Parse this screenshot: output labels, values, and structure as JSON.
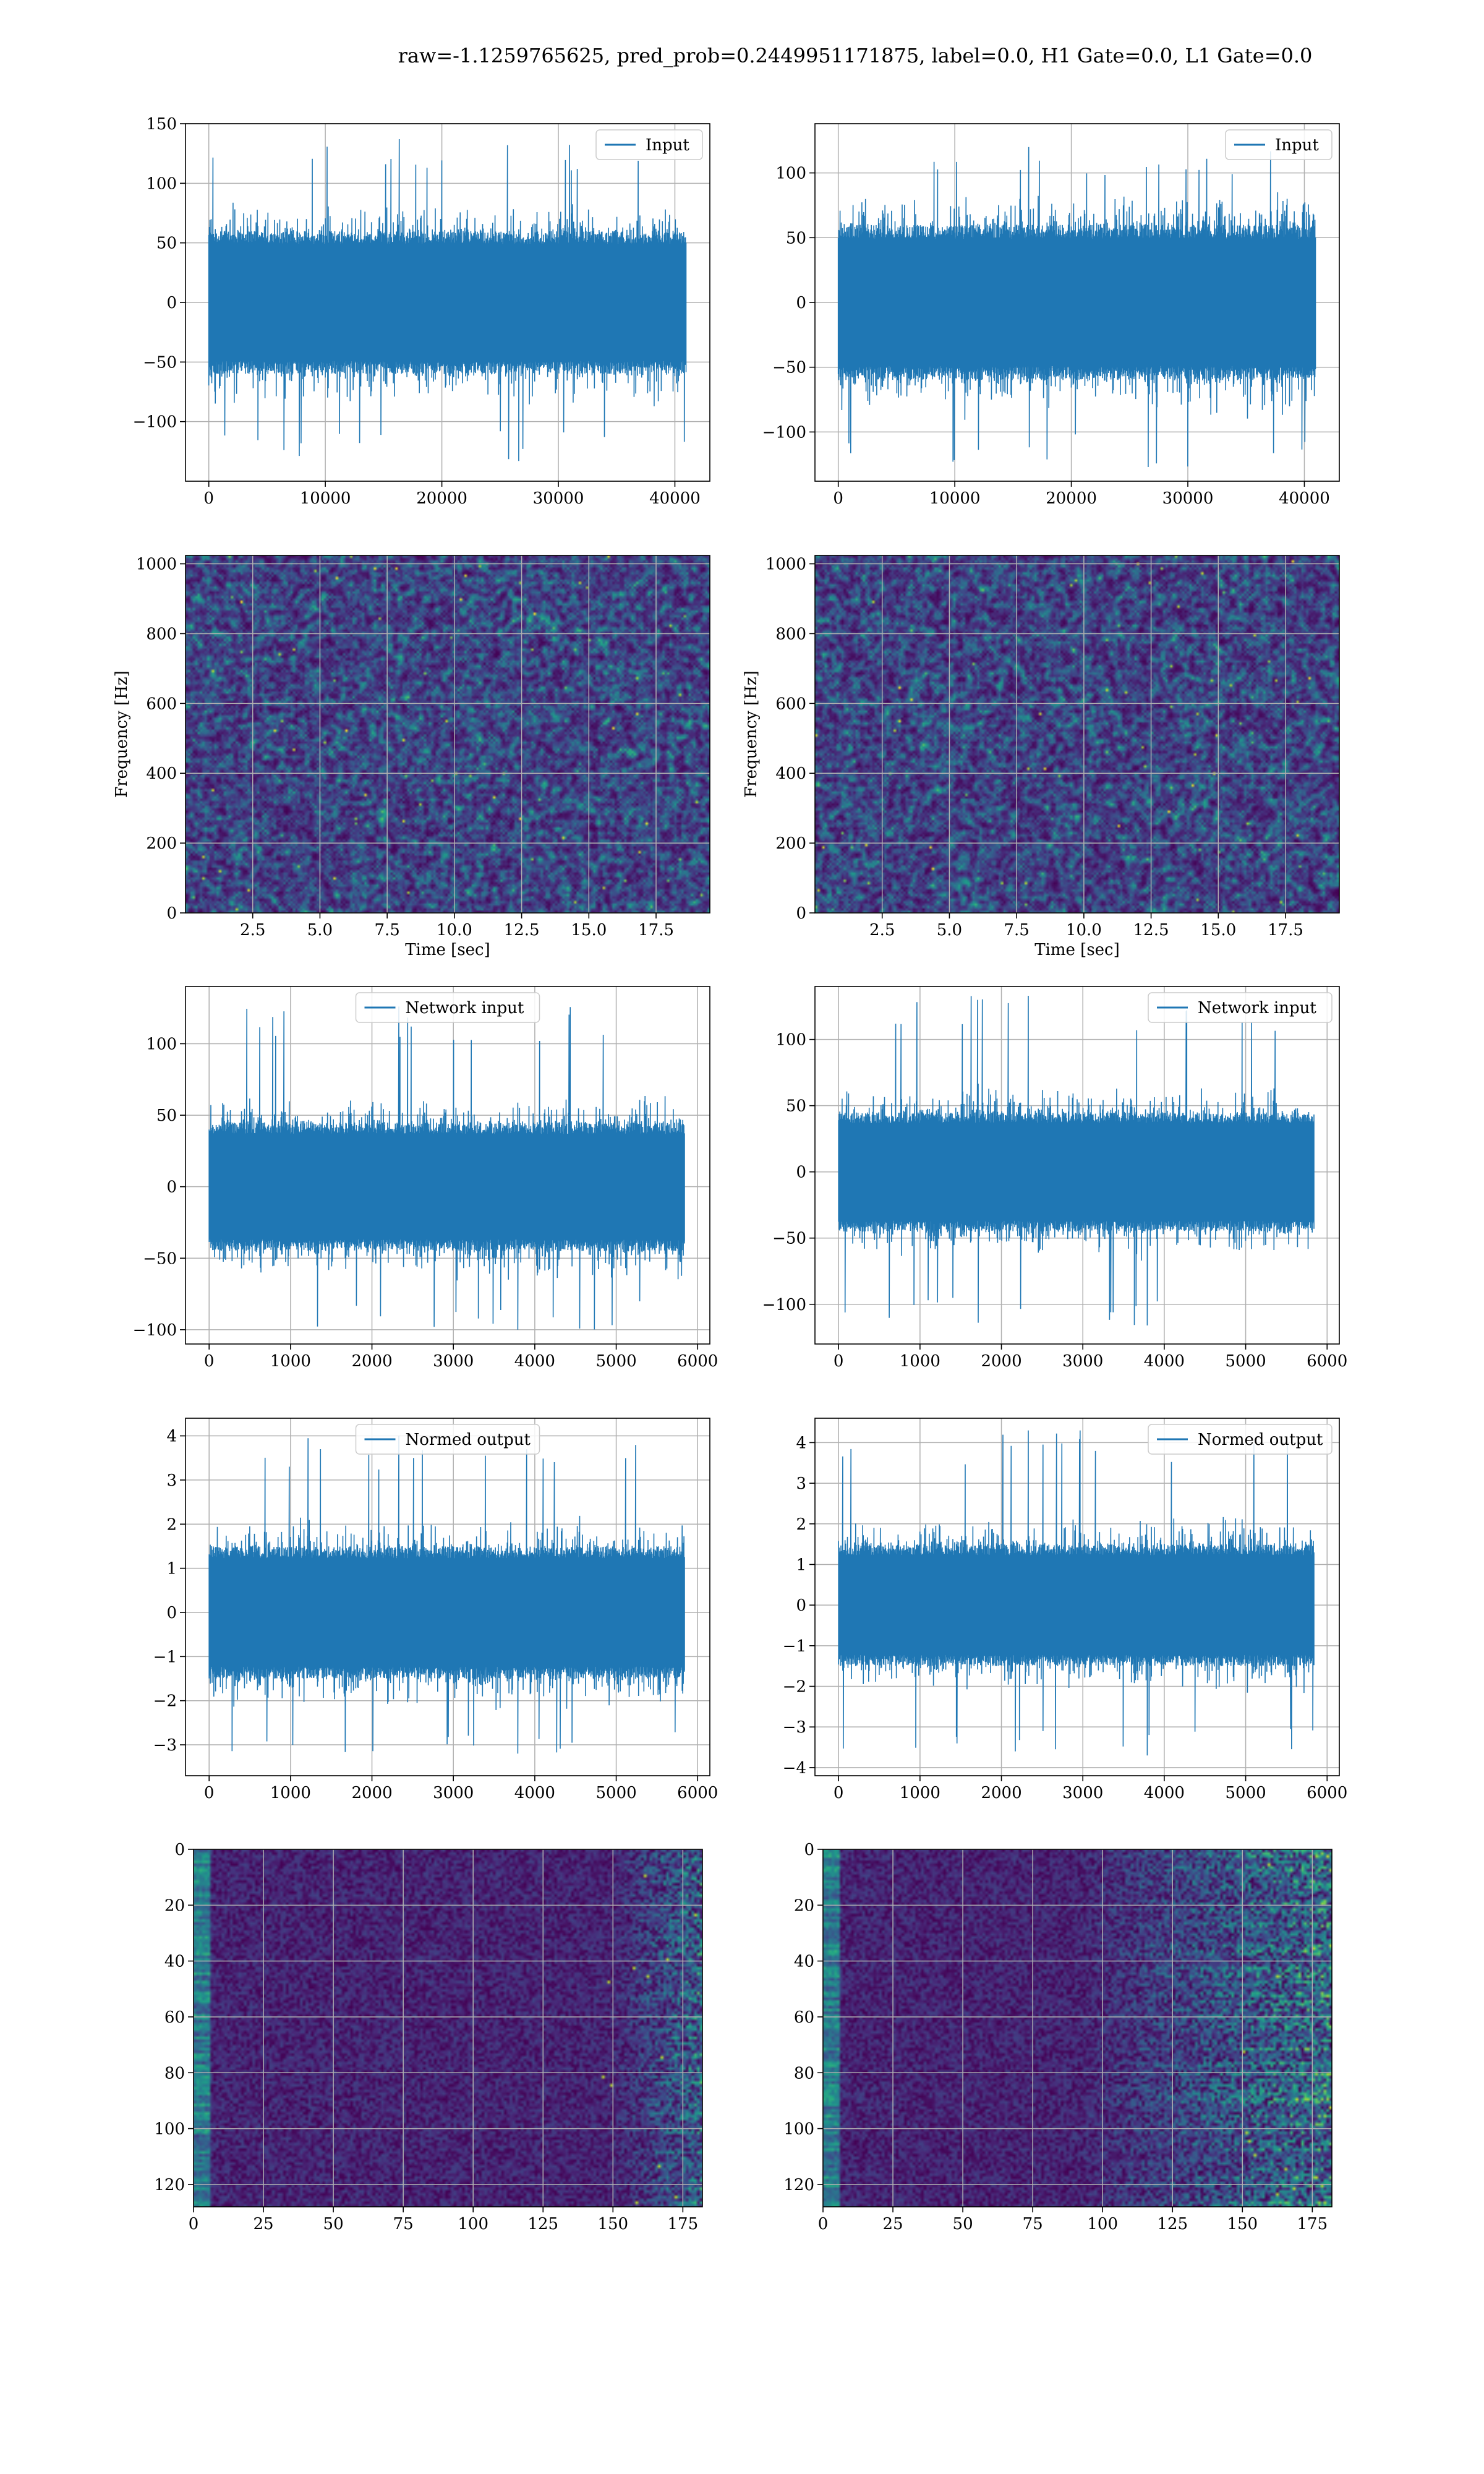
{
  "suptitle": "raw=-1.1259765625, pred_prob=0.2449951171875, label=0.0, H1 Gate=0.0, L1 Gate=0.0",
  "colors": {
    "line": "#1f77b4",
    "grid": "#b0b0b0",
    "frame": "#000000",
    "heat_low": "#440154",
    "heat_high": "#fde725"
  },
  "chart_data": [
    {
      "id": "input-h1",
      "type": "line",
      "legend": "Input",
      "legend_loc": "upper right",
      "xlim": [
        -2000,
        43000
      ],
      "ylim": [
        -150,
        150
      ],
      "xticks": [
        0,
        10000,
        20000,
        30000,
        40000
      ],
      "xticklabels": [
        "0",
        "10000",
        "20000",
        "30000",
        "40000"
      ],
      "yticks": [
        -100,
        -50,
        0,
        50,
        100,
        150
      ],
      "yticklabels": [
        "−100",
        "−50",
        "0",
        "50",
        "100",
        "150"
      ],
      "n": 40960,
      "body_amp": 60,
      "peak_max": 137,
      "peak_min": -133,
      "grid": true
    },
    {
      "id": "input-l1",
      "type": "line",
      "legend": "Input",
      "legend_loc": "upper right",
      "xlim": [
        -2000,
        43000
      ],
      "ylim": [
        -138,
        138
      ],
      "xticks": [
        0,
        10000,
        20000,
        30000,
        40000
      ],
      "xticklabels": [
        "0",
        "10000",
        "20000",
        "30000",
        "40000"
      ],
      "yticks": [
        -100,
        -50,
        0,
        50,
        100
      ],
      "yticklabels": [
        "−100",
        "−50",
        "0",
        "50",
        "100"
      ],
      "n": 40960,
      "body_amp": 60,
      "peak_max": 120,
      "peak_min": -127,
      "grid": true
    },
    {
      "id": "spectrogram-h1",
      "type": "heatmap",
      "xlim": [
        0,
        19.5
      ],
      "ylim": [
        0,
        1024
      ],
      "xticks": [
        2.5,
        5.0,
        7.5,
        10.0,
        12.5,
        15.0,
        17.5
      ],
      "xticklabels": [
        "2.5",
        "5.0",
        "7.5",
        "10.0",
        "12.5",
        "15.0",
        "17.5"
      ],
      "yticks": [
        0,
        200,
        400,
        600,
        800,
        1000
      ],
      "yticklabels": [
        "0",
        "200",
        "400",
        "600",
        "800",
        "1000"
      ],
      "xlabel": "Time [sec]",
      "ylabel": "Frequency [Hz]",
      "grid": true
    },
    {
      "id": "spectrogram-l1",
      "type": "heatmap",
      "xlim": [
        0,
        19.5
      ],
      "ylim": [
        0,
        1024
      ],
      "xticks": [
        2.5,
        5.0,
        7.5,
        10.0,
        12.5,
        15.0,
        17.5
      ],
      "xticklabels": [
        "2.5",
        "5.0",
        "7.5",
        "10.0",
        "12.5",
        "15.0",
        "17.5"
      ],
      "yticks": [
        0,
        200,
        400,
        600,
        800,
        1000
      ],
      "yticklabels": [
        "0",
        "200",
        "400",
        "600",
        "800",
        "1000"
      ],
      "xlabel": "Time [sec]",
      "ylabel": "Frequency [Hz]",
      "grid": true
    },
    {
      "id": "network-input-h1",
      "type": "line",
      "legend": "Network input",
      "legend_loc": "upper center",
      "xlim": [
        -290,
        6150
      ],
      "ylim": [
        -110,
        140
      ],
      "xticks": [
        0,
        1000,
        2000,
        3000,
        4000,
        5000,
        6000
      ],
      "xticklabels": [
        "0",
        "1000",
        "2000",
        "3000",
        "4000",
        "5000",
        "6000"
      ],
      "yticks": [
        -100,
        -50,
        0,
        50,
        100
      ],
      "yticklabels": [
        "−100",
        "−50",
        "0",
        "50",
        "100"
      ],
      "n": 5840,
      "body_amp": 45,
      "peak_max": 126,
      "peak_min": -100,
      "grid": true
    },
    {
      "id": "network-input-l1",
      "type": "line",
      "legend": "Network input",
      "legend_loc": "upper right",
      "xlim": [
        -290,
        6150
      ],
      "ylim": [
        -130,
        140
      ],
      "xticks": [
        0,
        1000,
        2000,
        3000,
        4000,
        5000,
        6000
      ],
      "xticklabels": [
        "0",
        "1000",
        "2000",
        "3000",
        "4000",
        "5000",
        "6000"
      ],
      "yticks": [
        -100,
        -50,
        0,
        50,
        100
      ],
      "yticklabels": [
        "−100",
        "−50",
        "0",
        "50",
        "100"
      ],
      "n": 5840,
      "body_amp": 45,
      "peak_max": 133,
      "peak_min": -116,
      "grid": true
    },
    {
      "id": "normed-output-h1",
      "type": "line",
      "legend": "Normed output",
      "legend_loc": "upper center",
      "xlim": [
        -290,
        6150
      ],
      "ylim": [
        -3.7,
        4.4
      ],
      "xticks": [
        0,
        1000,
        2000,
        3000,
        4000,
        5000,
        6000
      ],
      "xticklabels": [
        "0",
        "1000",
        "2000",
        "3000",
        "4000",
        "5000",
        "6000"
      ],
      "yticks": [
        -3,
        -2,
        -1,
        0,
        1,
        2,
        3,
        4
      ],
      "yticklabels": [
        "−3",
        "−2",
        "−1",
        "0",
        "1",
        "2",
        "3",
        "4"
      ],
      "n": 5840,
      "body_amp": 1.5,
      "peak_max": 4.0,
      "peak_min": -3.2,
      "grid": true
    },
    {
      "id": "normed-output-l1",
      "type": "line",
      "legend": "Normed output",
      "legend_loc": "upper right",
      "xlim": [
        -290,
        6150
      ],
      "ylim": [
        -4.2,
        4.6
      ],
      "xticks": [
        0,
        1000,
        2000,
        3000,
        4000,
        5000,
        6000
      ],
      "xticklabels": [
        "0",
        "1000",
        "2000",
        "3000",
        "4000",
        "5000",
        "6000"
      ],
      "yticks": [
        -4,
        -3,
        -2,
        -1,
        0,
        1,
        2,
        3,
        4
      ],
      "yticklabels": [
        "−4",
        "−3",
        "−2",
        "−1",
        "0",
        "1",
        "2",
        "3",
        "4"
      ],
      "n": 5840,
      "body_amp": 1.5,
      "peak_max": 4.3,
      "peak_min": -3.7,
      "grid": true
    },
    {
      "id": "feature-map-h1",
      "type": "heatmap",
      "xlim": [
        0,
        182
      ],
      "ylim": [
        128,
        0
      ],
      "xticks": [
        0,
        25,
        50,
        75,
        100,
        125,
        150,
        175
      ],
      "xticklabels": [
        "0",
        "25",
        "50",
        "75",
        "100",
        "125",
        "150",
        "175"
      ],
      "yticks": [
        0,
        20,
        40,
        60,
        80,
        100,
        120
      ],
      "yticklabels": [
        "0",
        "20",
        "40",
        "60",
        "80",
        "100",
        "120"
      ],
      "grid": true
    },
    {
      "id": "feature-map-l1",
      "type": "heatmap",
      "xlim": [
        0,
        182
      ],
      "ylim": [
        128,
        0
      ],
      "xticks": [
        0,
        25,
        50,
        75,
        100,
        125,
        150,
        175
      ],
      "xticklabels": [
        "0",
        "25",
        "50",
        "75",
        "100",
        "125",
        "150",
        "175"
      ],
      "yticks": [
        0,
        20,
        40,
        60,
        80,
        100,
        120
      ],
      "yticklabels": [
        "0",
        "20",
        "40",
        "60",
        "80",
        "100",
        "120"
      ],
      "grid": true
    }
  ]
}
